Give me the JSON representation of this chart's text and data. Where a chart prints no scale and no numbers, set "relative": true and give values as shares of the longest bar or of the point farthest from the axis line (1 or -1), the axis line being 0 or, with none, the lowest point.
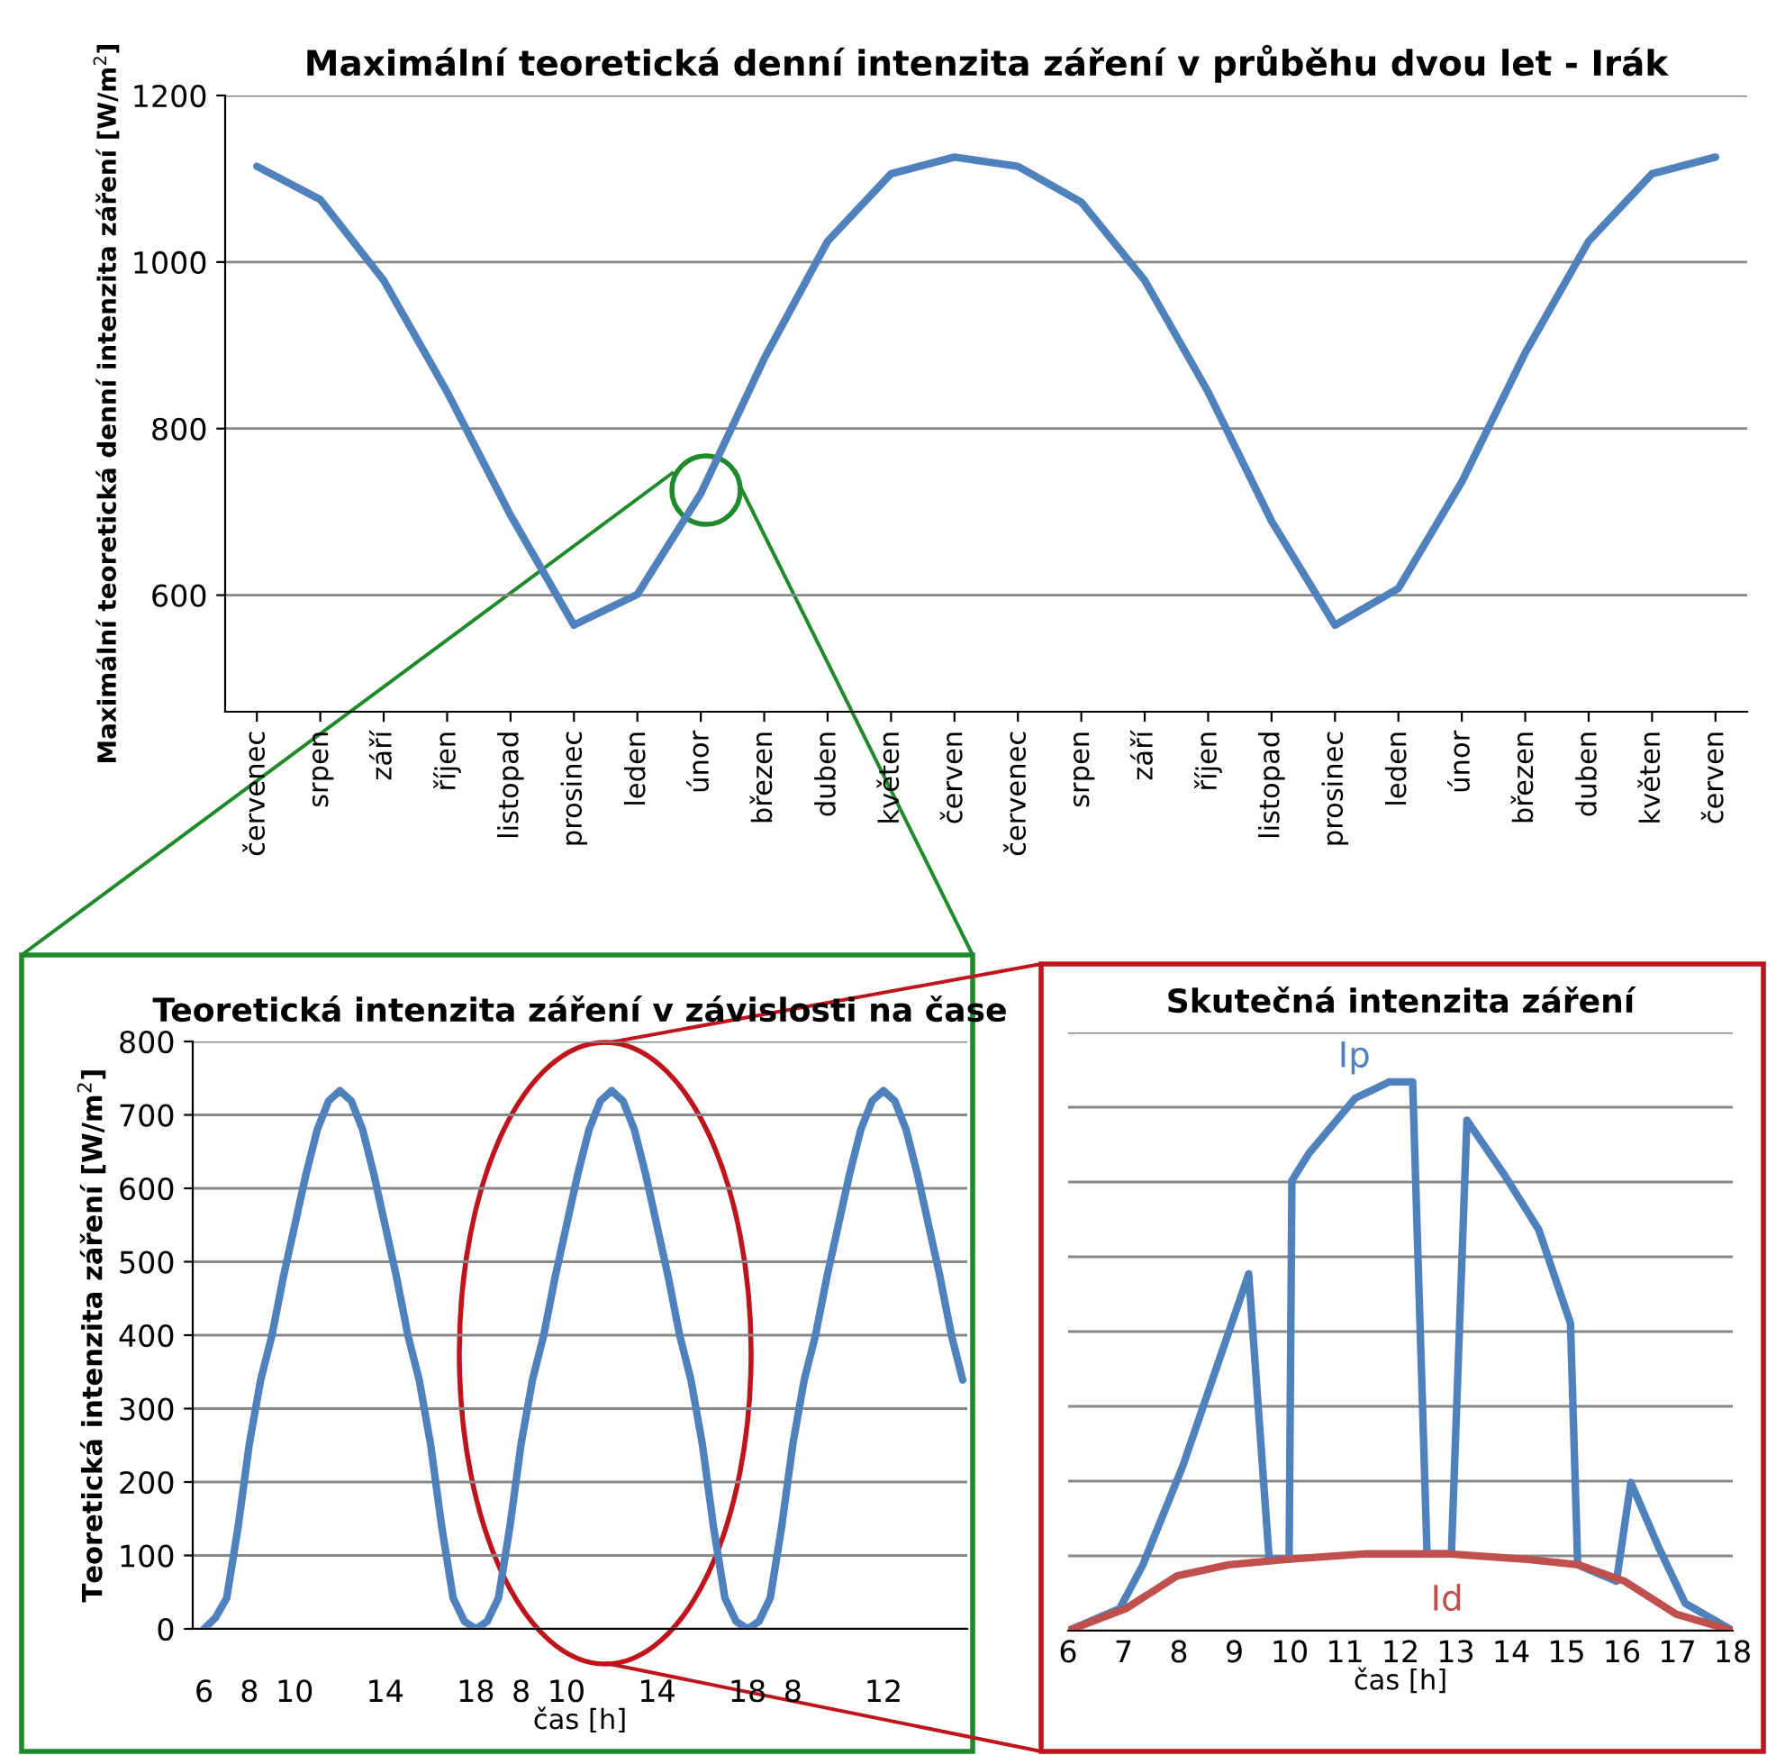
{
  "chart_data": [
    {
      "type": "line",
      "title": "Maximální teoretická denní intenzita záření v průběhu dvou let - Irák",
      "ylabel": "Maximální teoretická denní intenzita záření [W/m$^{2}$]",
      "categories": [
        "červenec",
        "srpen",
        "září",
        "říjen",
        "listopad",
        "prosinec",
        "leden",
        "únor",
        "březen",
        "duben",
        "květen",
        "červen",
        "červenec",
        "srpen",
        "září",
        "říjen",
        "listopad",
        "prosinec",
        "leden",
        "únor",
        "březen",
        "duben",
        "květen",
        "červen"
      ],
      "series": [
        {
          "color": "#4f81bd",
          "values": [
            1115,
            1075,
            978,
            844,
            696,
            564,
            601,
            722,
            884,
            1025,
            1106,
            1126,
            1115,
            1072,
            978,
            844,
            689,
            564,
            608,
            736,
            891,
            1025,
            1106,
            1126
          ]
        }
      ],
      "ylim": [
        460,
        1200
      ],
      "yticks": [
        600,
        800,
        1000,
        1200
      ],
      "grid": "y"
    },
    {
      "type": "line",
      "title": "Teoretická intenzita záření v závislosti na čase",
      "xlabel": "čas [h]",
      "ylabel": "Teoretická intenzita záření [W/m$^{2}$]",
      "categories": [
        "6",
        null,
        null,
        null,
        "8",
        null,
        null,
        null,
        "10",
        null,
        null,
        null,
        null,
        null,
        null,
        null,
        "14",
        null,
        null,
        null,
        null,
        null,
        null,
        null,
        "18",
        null,
        null,
        null,
        "8",
        null,
        null,
        null,
        "10",
        null,
        null,
        null,
        null,
        null,
        null,
        null,
        "14",
        null,
        null,
        null,
        null,
        null,
        null,
        null,
        "18",
        null,
        null,
        null,
        "8",
        null,
        null,
        null,
        null,
        null,
        null,
        null,
        "12",
        null,
        null,
        null,
        null,
        null,
        null,
        null
      ],
      "series": [
        {
          "color": "#4f81bd",
          "values": [
            0,
            15,
            42,
            138,
            252,
            339,
            400,
            479,
            549,
            619,
            680,
            719,
            733,
            719,
            680,
            619,
            549,
            479,
            400,
            339,
            252,
            138,
            42,
            10,
            0,
            10,
            42,
            138,
            252,
            339,
            400,
            479,
            549,
            619,
            680,
            719,
            733,
            719,
            680,
            619,
            549,
            479,
            400,
            339,
            252,
            138,
            42,
            10,
            0,
            10,
            42,
            138,
            252,
            339,
            400,
            479,
            549,
            619,
            680,
            719,
            733,
            719,
            680,
            619,
            549,
            479,
            400,
            339
          ]
        }
      ],
      "ylim": [
        0,
        800
      ],
      "yticks": [
        0,
        100,
        200,
        300,
        400,
        500,
        600,
        700,
        800
      ],
      "grid": "y"
    },
    {
      "type": "line",
      "title": "Skutečná intenzita záření",
      "xlabel": "čas [h]",
      "relative": true,
      "series": [
        {
          "name": "Ip",
          "color": "#4f81bd",
          "x": [
            6,
            6.93,
            7.35,
            8.07,
            9.26,
            9.63,
            9.99,
            10.04,
            10.35,
            11.18,
            11.8,
            12.22,
            12.48,
            12.92,
            13.2,
            13.88,
            14.5,
            15.07,
            15.2,
            15.9,
            16.16,
            16.67,
            17.14,
            18
          ],
          "values": [
            0,
            0.04,
            0.12,
            0.3,
            0.65,
            0.13,
            0.13,
            0.82,
            0.87,
            0.97,
            1.0,
            1.0,
            0.14,
            0.14,
            0.93,
            0.83,
            0.73,
            0.56,
            0.12,
            0.09,
            0.27,
            0.15,
            0.05,
            0
          ]
        },
        {
          "name": "Id",
          "color": "#c0504d",
          "x": [
            6,
            7.04,
            7.97,
            8.9,
            9.94,
            11.39,
            12.84,
            14.29,
            15.22,
            16.05,
            16.98,
            18
          ],
          "values": [
            0,
            0.04,
            0.1,
            0.12,
            0.13,
            0.14,
            0.14,
            0.13,
            0.12,
            0.09,
            0.03,
            0
          ]
        }
      ],
      "xlim": [
        6,
        18
      ],
      "xticks": [
        6,
        7,
        8,
        9,
        10,
        11,
        12,
        13,
        14,
        15,
        16,
        17,
        18
      ],
      "grid": "y",
      "tick_labels": "x"
    }
  ]
}
